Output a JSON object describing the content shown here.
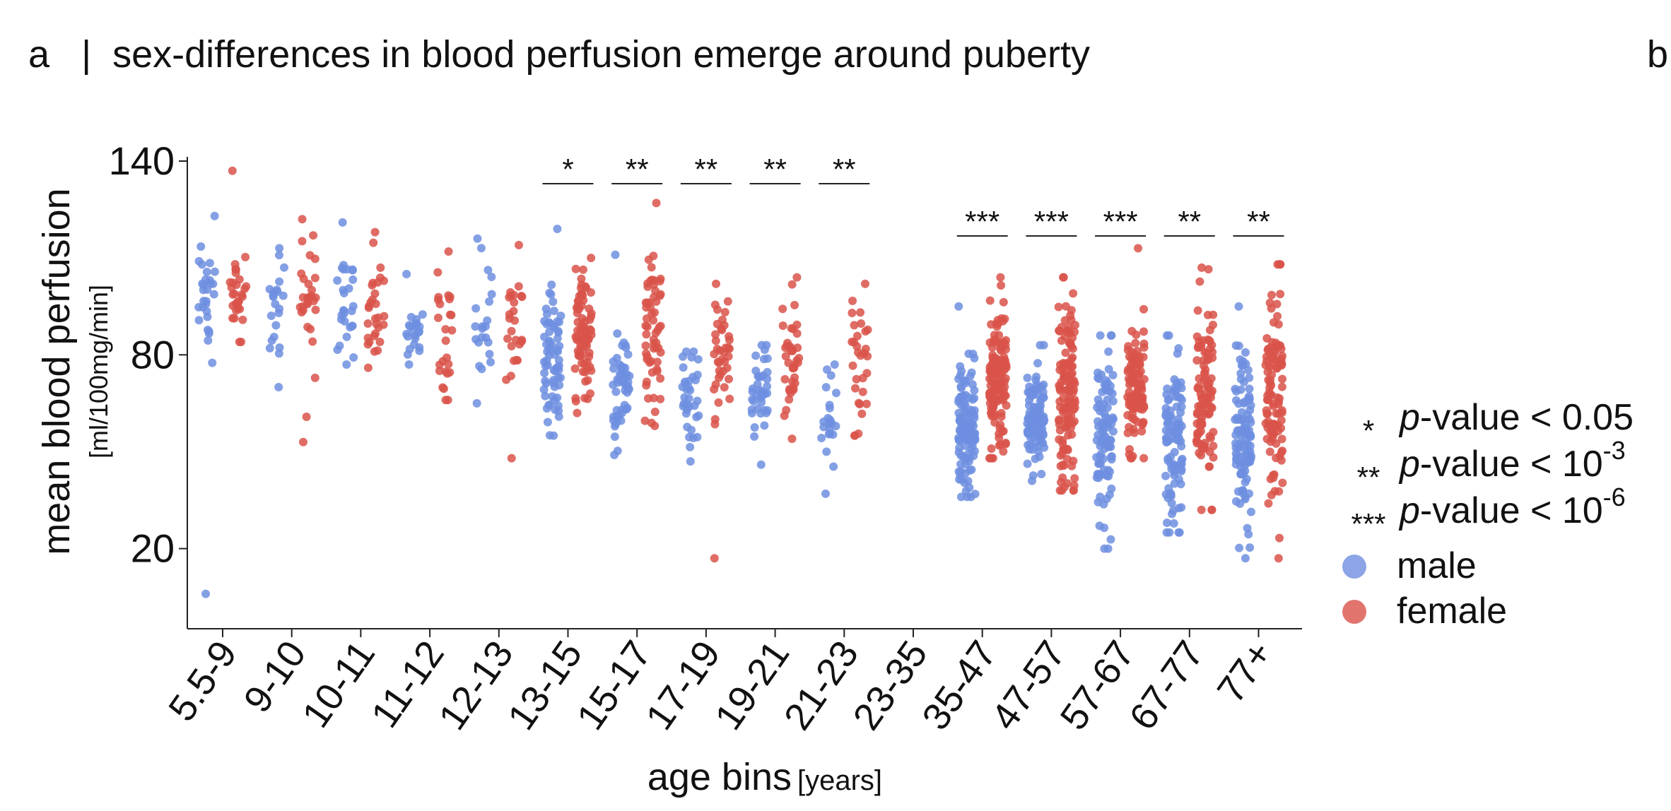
{
  "panel": {
    "letter": "a",
    "separator": "|",
    "title": "sex-differences in blood perfusion emerge around puberty",
    "next_panel_letter": "b"
  },
  "colors": {
    "male": "#6f8fe0",
    "female": "#d9534a",
    "axis": "#222222"
  },
  "chart_data": {
    "type": "scatter",
    "title": "sex-differences in blood perfusion emerge around puberty",
    "xlabel": "age bins",
    "xlabel_unit": "[years]",
    "ylabel": "mean blood perfusion",
    "ylabel_unit": "[ml/100mg/min]",
    "ylim": [
      0,
      140
    ],
    "yticks": [
      20,
      80,
      140
    ],
    "grid": false,
    "categories": [
      "5.5-9",
      "9-10",
      "10-11",
      "11-12",
      "12-13",
      "13-15",
      "15-17",
      "17-19",
      "19-21",
      "21-23",
      "23-35",
      "35-47",
      "47-57",
      "57-67",
      "67-77",
      "77+"
    ],
    "significance": [
      "",
      "",
      "",
      "",
      "",
      "*",
      "**",
      "**",
      "**",
      "**",
      "",
      "***",
      "***",
      "***",
      "**",
      "**"
    ],
    "series": [
      {
        "name": "male",
        "summary": [
          {
            "median": 99,
            "min": 6,
            "max": 123,
            "n": 30
          },
          {
            "median": 95,
            "min": 70,
            "max": 113,
            "n": 22
          },
          {
            "median": 95,
            "min": 77,
            "max": 121,
            "n": 28
          },
          {
            "median": 86,
            "min": 77,
            "max": 105,
            "n": 24
          },
          {
            "median": 90,
            "min": 65,
            "max": 116,
            "n": 22
          },
          {
            "median": 79,
            "min": 55,
            "max": 119,
            "n": 70
          },
          {
            "median": 72,
            "min": 49,
            "max": 111,
            "n": 55
          },
          {
            "median": 67,
            "min": 47,
            "max": 81,
            "n": 35
          },
          {
            "median": 68,
            "min": 46,
            "max": 83,
            "n": 40
          },
          {
            "median": 63,
            "min": 37,
            "max": 77,
            "n": 22
          },
          {
            "median": null,
            "min": null,
            "max": null,
            "n": 0
          },
          {
            "median": 58,
            "min": 36,
            "max": 95,
            "n": 120
          },
          {
            "median": 60,
            "min": 41,
            "max": 83,
            "n": 110
          },
          {
            "median": 56,
            "min": 20,
            "max": 86,
            "n": 100
          },
          {
            "median": 53,
            "min": 25,
            "max": 86,
            "n": 100
          },
          {
            "median": 52,
            "min": 17,
            "max": 95,
            "n": 110
          }
        ]
      },
      {
        "name": "female",
        "summary": [
          {
            "median": 100,
            "min": 84,
            "max": 137,
            "n": 30
          },
          {
            "median": 95,
            "min": 53,
            "max": 122,
            "n": 30
          },
          {
            "median": 95,
            "min": 76,
            "max": 118,
            "n": 30
          },
          {
            "median": 88,
            "min": 66,
            "max": 112,
            "n": 26
          },
          {
            "median": 86,
            "min": 48,
            "max": 114,
            "n": 26
          },
          {
            "median": 84,
            "min": 62,
            "max": 110,
            "n": 80
          },
          {
            "median": 86,
            "min": 58,
            "max": 127,
            "n": 60
          },
          {
            "median": 80,
            "min": 17,
            "max": 102,
            "n": 40
          },
          {
            "median": 78,
            "min": 54,
            "max": 104,
            "n": 40
          },
          {
            "median": 77,
            "min": 55,
            "max": 102,
            "n": 30
          },
          {
            "median": null,
            "min": null,
            "max": null,
            "n": 0
          },
          {
            "median": 73,
            "min": 48,
            "max": 104,
            "n": 140
          },
          {
            "median": 70,
            "min": 38,
            "max": 104,
            "n": 130
          },
          {
            "median": 69,
            "min": 48,
            "max": 113,
            "n": 100
          },
          {
            "median": 67,
            "min": 32,
            "max": 107,
            "n": 100
          },
          {
            "median": 64,
            "min": 17,
            "max": 108,
            "n": 110
          }
        ]
      }
    ],
    "legend": {
      "position": "right",
      "significance": [
        {
          "stars": "*",
          "text": "-value < 0.05"
        },
        {
          "stars": "**",
          "text": "-value < 10",
          "exponent": "-3"
        },
        {
          "stars": "***",
          "text": "-value < 10",
          "exponent": "-6"
        }
      ],
      "p_symbol": "p",
      "series": [
        "male",
        "female"
      ]
    }
  }
}
